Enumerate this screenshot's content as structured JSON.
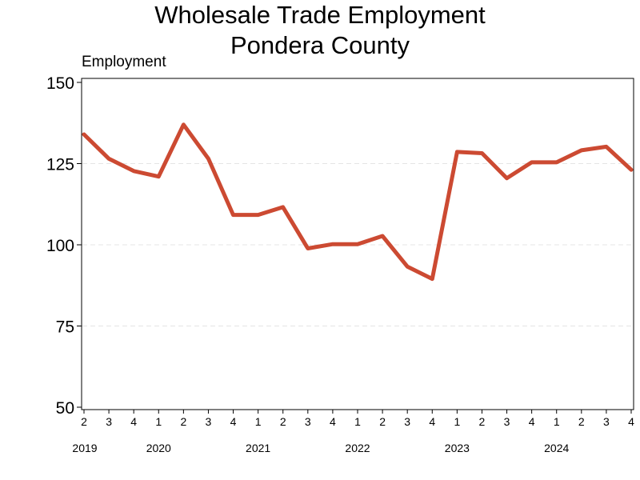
{
  "chart_data": {
    "type": "line",
    "title": "Wholesale Trade Employment",
    "subtitle": "Pondera County",
    "ylabel": "Employment",
    "xlabel": "",
    "ylim": [
      50,
      150
    ],
    "yticks": [
      50,
      75,
      100,
      125,
      150
    ],
    "grid": "horizontal dashed",
    "color": "#cc4a32",
    "quarters": [
      "2",
      "3",
      "4",
      "1",
      "2",
      "3",
      "4",
      "1",
      "2",
      "3",
      "4",
      "1",
      "2",
      "3",
      "4",
      "1",
      "2",
      "3",
      "4",
      "1",
      "2",
      "3",
      "4"
    ],
    "years": [
      "2019",
      "2020",
      "2021",
      "2022",
      "2023",
      "2024"
    ],
    "year_start_index": [
      0,
      3,
      7,
      11,
      15,
      19
    ],
    "series": [
      {
        "values": [
          134,
          126.5,
          122.7,
          121,
          137,
          126.5,
          109.2,
          109.2,
          111.6,
          98.9,
          100.2,
          100.2,
          102.7,
          93.3,
          89.5,
          128.6,
          128.2,
          120.5,
          125.4,
          125.4,
          129.1,
          130.2,
          123.1
        ]
      }
    ]
  }
}
